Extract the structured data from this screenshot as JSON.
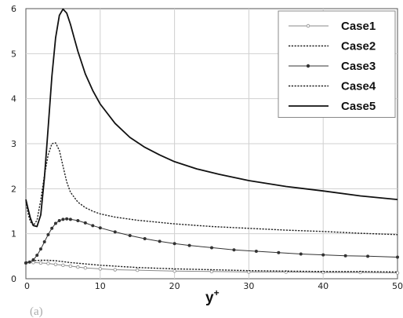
{
  "chart_data": {
    "type": "line",
    "title": "",
    "xlabel": "y",
    "xlabel_superscript": "+",
    "ylabel": "",
    "xlim": [
      0,
      50
    ],
    "ylim": [
      0,
      6
    ],
    "xticks": [
      "0",
      "10",
      "20",
      "30",
      "40",
      "50"
    ],
    "yticks": [
      "0",
      "1",
      "2",
      "3",
      "4",
      "5",
      "6"
    ],
    "grid": true,
    "legend_position": "top-right",
    "series": [
      {
        "name": "Case1",
        "style": "solid-thin-markers",
        "color": "#8a8a8a",
        "x": [
          0,
          1,
          2,
          3,
          4,
          5,
          6,
          7,
          8,
          10,
          12,
          15,
          20,
          25,
          30,
          35,
          40,
          45,
          50
        ],
        "y": [
          0.35,
          0.36,
          0.35,
          0.34,
          0.32,
          0.3,
          0.28,
          0.26,
          0.24,
          0.22,
          0.2,
          0.19,
          0.17,
          0.16,
          0.15,
          0.15,
          0.14,
          0.14,
          0.13
        ]
      },
      {
        "name": "Case2",
        "style": "dotted",
        "color": "#222222",
        "x": [
          0,
          1,
          2,
          3,
          4,
          5,
          6,
          8,
          10,
          15,
          20,
          25,
          30,
          35,
          40,
          45,
          50
        ],
        "y": [
          0.37,
          0.4,
          0.41,
          0.41,
          0.4,
          0.38,
          0.36,
          0.33,
          0.3,
          0.25,
          0.22,
          0.2,
          0.18,
          0.17,
          0.16,
          0.16,
          0.15
        ]
      },
      {
        "name": "Case3",
        "style": "solid-thin-dots",
        "color": "#333333",
        "x": [
          0,
          0.5,
          1,
          1.5,
          2,
          2.5,
          3,
          3.5,
          4,
          4.5,
          5,
          5.5,
          6,
          7,
          8,
          9,
          10,
          12,
          14,
          16,
          18,
          20,
          22,
          25,
          28,
          31,
          34,
          37,
          40,
          43,
          46,
          50
        ],
        "y": [
          0.35,
          0.37,
          0.42,
          0.52,
          0.66,
          0.82,
          0.98,
          1.12,
          1.23,
          1.29,
          1.32,
          1.33,
          1.32,
          1.29,
          1.24,
          1.18,
          1.13,
          1.04,
          0.96,
          0.89,
          0.83,
          0.78,
          0.74,
          0.69,
          0.64,
          0.61,
          0.58,
          0.55,
          0.53,
          0.51,
          0.5,
          0.48
        ]
      },
      {
        "name": "Case4",
        "style": "dotted",
        "color": "#222222",
        "x": [
          0,
          0.3,
          0.6,
          1,
          1.5,
          2,
          2.5,
          3,
          3.5,
          4,
          4.5,
          5,
          5.5,
          6,
          7,
          8,
          9,
          10,
          12,
          15,
          20,
          25,
          30,
          35,
          40,
          45,
          50
        ],
        "y": [
          1.72,
          1.45,
          1.27,
          1.18,
          1.3,
          1.75,
          2.3,
          2.75,
          3.0,
          3.02,
          2.85,
          2.5,
          2.15,
          1.92,
          1.7,
          1.58,
          1.5,
          1.44,
          1.37,
          1.3,
          1.22,
          1.16,
          1.12,
          1.08,
          1.05,
          1.01,
          0.98
        ]
      },
      {
        "name": "Case5",
        "style": "solid",
        "color": "#111111",
        "x": [
          0,
          0.3,
          0.6,
          1,
          1.5,
          2,
          2.5,
          3,
          3.5,
          4,
          4.5,
          5,
          5.5,
          6,
          6.5,
          7,
          8,
          9,
          10,
          12,
          14,
          16,
          18,
          20,
          23,
          26,
          30,
          35,
          40,
          45,
          50
        ],
        "y": [
          1.76,
          1.55,
          1.35,
          1.18,
          1.16,
          1.42,
          2.25,
          3.35,
          4.5,
          5.35,
          5.85,
          5.99,
          5.9,
          5.65,
          5.35,
          5.05,
          4.55,
          4.18,
          3.88,
          3.45,
          3.14,
          2.92,
          2.75,
          2.6,
          2.44,
          2.32,
          2.18,
          2.05,
          1.95,
          1.84,
          1.76
        ]
      }
    ]
  },
  "caption_fragment": "(a)"
}
